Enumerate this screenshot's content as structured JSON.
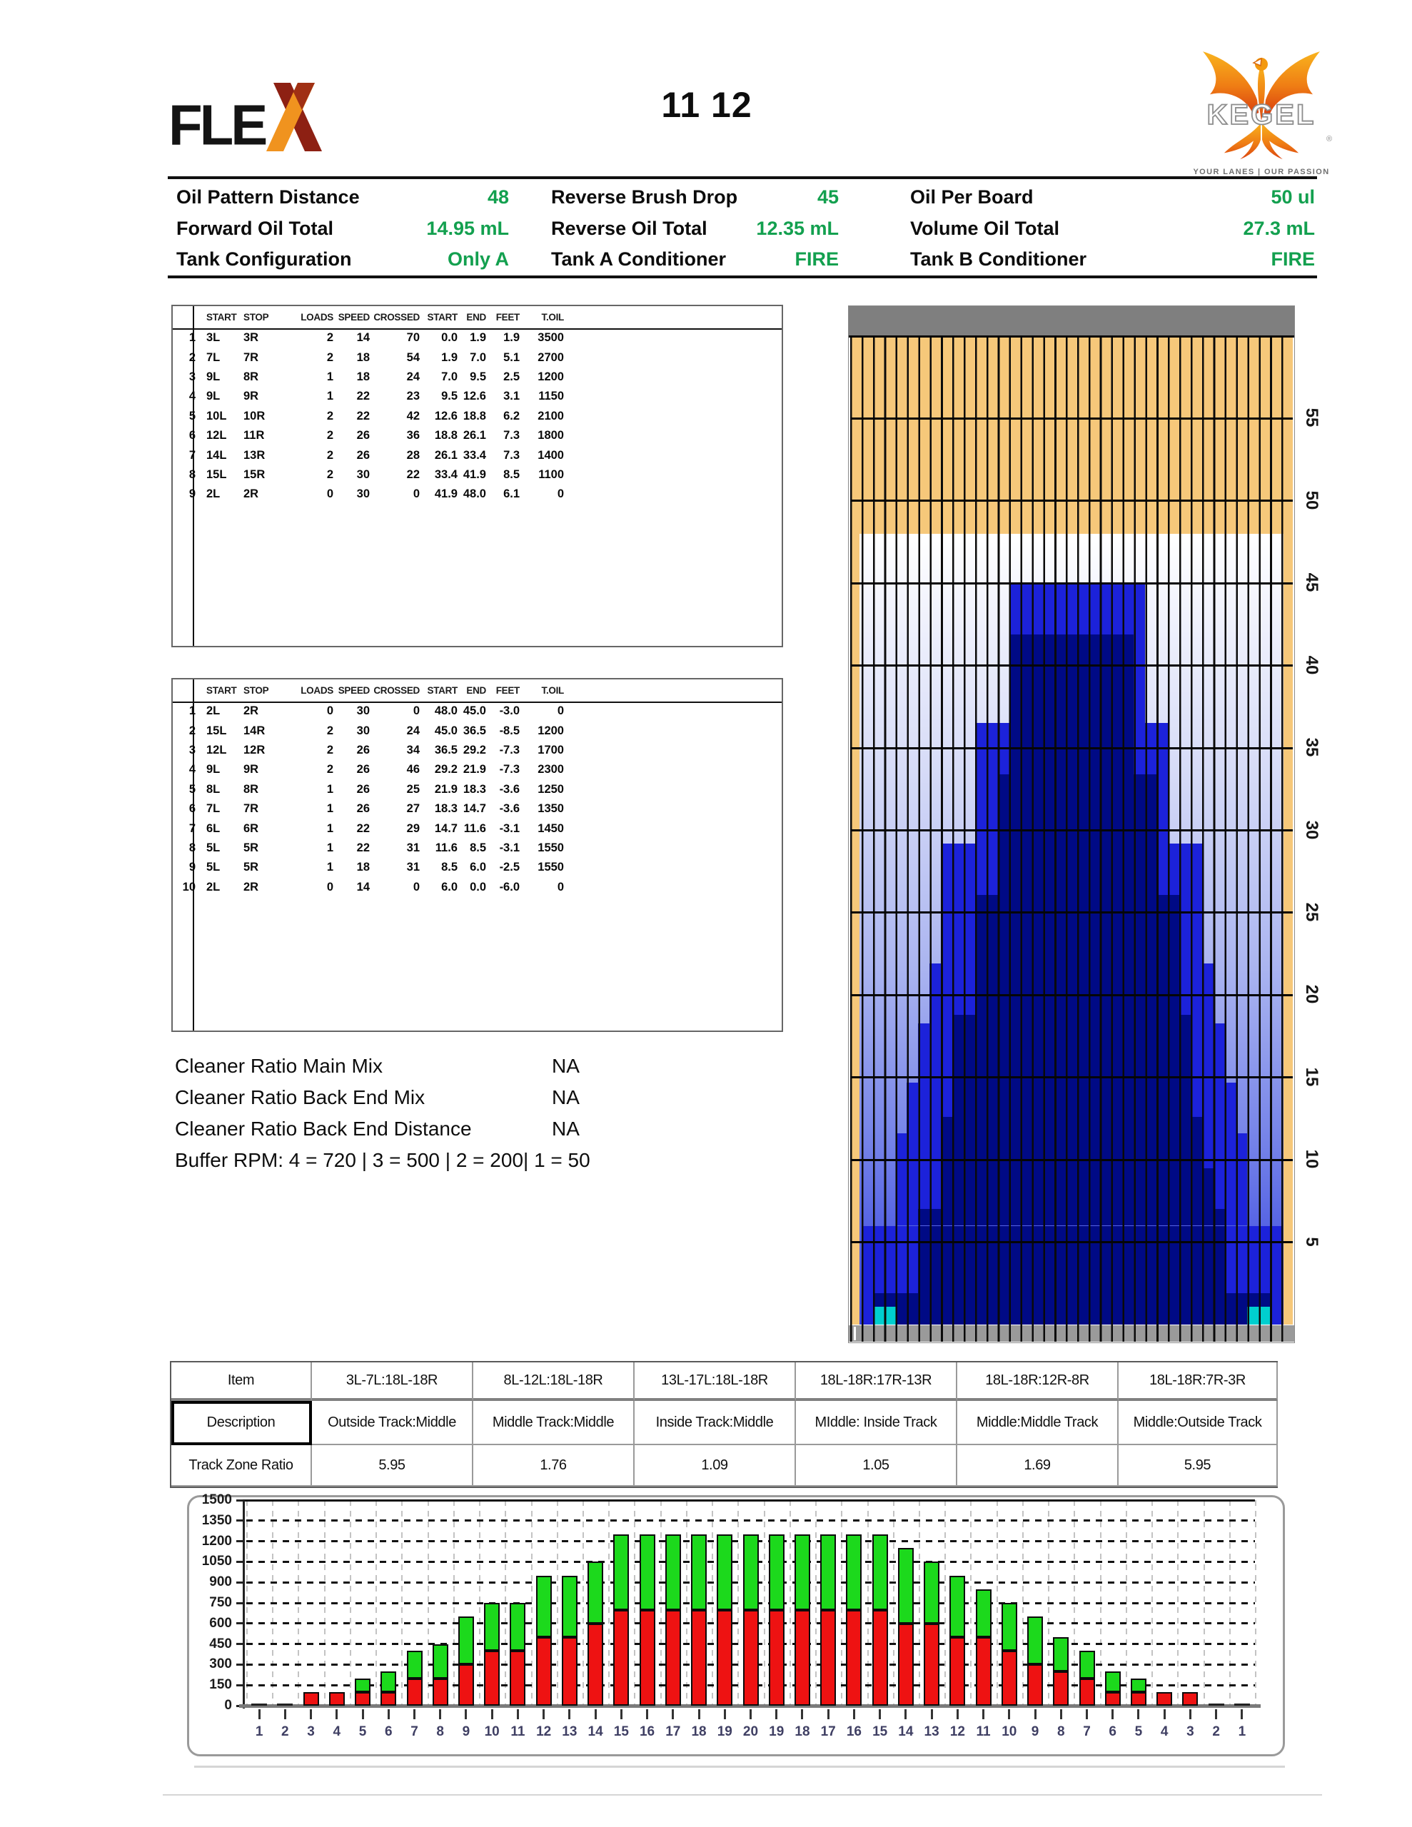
{
  "header": {
    "flex_text": "FLE",
    "flex_x": "X",
    "title": "11 12",
    "kegel_text": "KEGEL",
    "kegel_registered": "®",
    "kegel_tagline": "YOUR LANES | OUR PASSION"
  },
  "info": {
    "value_color": "#13a04f",
    "cells": [
      {
        "label": "Oil Pattern Distance",
        "value": "48"
      },
      {
        "label": "Reverse Brush Drop",
        "value": "45"
      },
      {
        "label": "Oil Per Board",
        "value": "50 ul"
      },
      {
        "label": "Forward Oil Total",
        "value": "14.95 mL"
      },
      {
        "label": "Reverse Oil Total",
        "value": "12.35 mL"
      },
      {
        "label": "Volume Oil Total",
        "value": "27.3 mL"
      },
      {
        "label": "Tank Configuration",
        "value": "Only A"
      },
      {
        "label": "Tank A Conditioner",
        "value": "FIRE"
      },
      {
        "label": "Tank B Conditioner",
        "value": "FIRE"
      }
    ]
  },
  "forward_table": {
    "headers": [
      "START",
      "STOP",
      "LOADS",
      "SPEED",
      "CROSSED",
      "START",
      "END",
      "FEET",
      "T.OIL"
    ],
    "rows": [
      [
        "1",
        "3L",
        "3R",
        "2",
        "14",
        "70",
        "0.0",
        "1.9",
        "1.9",
        "3500"
      ],
      [
        "2",
        "7L",
        "7R",
        "2",
        "18",
        "54",
        "1.9",
        "7.0",
        "5.1",
        "2700"
      ],
      [
        "3",
        "9L",
        "8R",
        "1",
        "18",
        "24",
        "7.0",
        "9.5",
        "2.5",
        "1200"
      ],
      [
        "4",
        "9L",
        "9R",
        "1",
        "22",
        "23",
        "9.5",
        "12.6",
        "3.1",
        "1150"
      ],
      [
        "5",
        "10L",
        "10R",
        "2",
        "22",
        "42",
        "12.6",
        "18.8",
        "6.2",
        "2100"
      ],
      [
        "6",
        "12L",
        "11R",
        "2",
        "26",
        "36",
        "18.8",
        "26.1",
        "7.3",
        "1800"
      ],
      [
        "7",
        "14L",
        "13R",
        "2",
        "26",
        "28",
        "26.1",
        "33.4",
        "7.3",
        "1400"
      ],
      [
        "8",
        "15L",
        "15R",
        "2",
        "30",
        "22",
        "33.4",
        "41.9",
        "8.5",
        "1100"
      ],
      [
        "9",
        "2L",
        "2R",
        "0",
        "30",
        "0",
        "41.9",
        "48.0",
        "6.1",
        "0"
      ]
    ]
  },
  "reverse_table": {
    "headers": [
      "START",
      "STOP",
      "LOADS",
      "SPEED",
      "CROSSED",
      "START",
      "END",
      "FEET",
      "T.OIL"
    ],
    "rows": [
      [
        "1",
        "2L",
        "2R",
        "0",
        "30",
        "0",
        "48.0",
        "45.0",
        "-3.0",
        "0"
      ],
      [
        "2",
        "15L",
        "14R",
        "2",
        "30",
        "24",
        "45.0",
        "36.5",
        "-8.5",
        "1200"
      ],
      [
        "3",
        "12L",
        "12R",
        "2",
        "26",
        "34",
        "36.5",
        "29.2",
        "-7.3",
        "1700"
      ],
      [
        "4",
        "9L",
        "9R",
        "2",
        "26",
        "46",
        "29.2",
        "21.9",
        "-7.3",
        "2300"
      ],
      [
        "5",
        "8L",
        "8R",
        "1",
        "26",
        "25",
        "21.9",
        "18.3",
        "-3.6",
        "1250"
      ],
      [
        "6",
        "7L",
        "7R",
        "1",
        "26",
        "27",
        "18.3",
        "14.7",
        "-3.6",
        "1350"
      ],
      [
        "7",
        "6L",
        "6R",
        "1",
        "22",
        "29",
        "14.7",
        "11.6",
        "-3.1",
        "1450"
      ],
      [
        "8",
        "5L",
        "5R",
        "1",
        "22",
        "31",
        "11.6",
        "8.5",
        "-3.1",
        "1550"
      ],
      [
        "9",
        "5L",
        "5R",
        "1",
        "18",
        "31",
        "8.5",
        "6.0",
        "-2.5",
        "1550"
      ],
      [
        "10",
        "2L",
        "2R",
        "0",
        "14",
        "0",
        "6.0",
        "0.0",
        "-6.0",
        "0"
      ]
    ]
  },
  "cleaner": {
    "lines": [
      {
        "label": "Cleaner Ratio Main Mix",
        "value": "NA"
      },
      {
        "label": "Cleaner Ratio Back End Mix",
        "value": "NA"
      },
      {
        "label": "Cleaner Ratio Back End Distance",
        "value": "NA"
      }
    ],
    "buffer_rpm": "Buffer RPM: 4 = 720 | 3 = 500 | 2 = 200| 1 = 50"
  },
  "lane": {
    "boards": 39,
    "length_ft": 60,
    "pattern_distance_ft": 48,
    "distance_labels": [
      "55",
      "50",
      "45",
      "40",
      "35",
      "30",
      "25",
      "20",
      "15",
      "10",
      "5"
    ],
    "colors": {
      "wood": "#f6c87a",
      "pindeck_gray": "#7f7f7f",
      "foul_gray": "#9a9a9a",
      "oil_medium": "#1c22da",
      "oil_dark": "#000a85",
      "marker_cyan": "#00cfcf",
      "board_line": "#0a0a0a"
    },
    "bands": [
      {
        "from": 0.0,
        "to": 1.9,
        "union": [
          2,
          38
        ],
        "core": [
          3,
          37
        ]
      },
      {
        "from": 1.9,
        "to": 6.0,
        "union": [
          2,
          38
        ],
        "core": [
          7,
          33
        ]
      },
      {
        "from": 6.0,
        "to": 7.0,
        "union": [
          5,
          35
        ],
        "core": [
          7,
          33
        ]
      },
      {
        "from": 7.0,
        "to": 9.5,
        "union": [
          5,
          35
        ],
        "core": [
          9,
          32
        ]
      },
      {
        "from": 9.5,
        "to": 11.6,
        "union": [
          5,
          35
        ],
        "core": [
          9,
          31
        ]
      },
      {
        "from": 11.6,
        "to": 12.6,
        "union": [
          6,
          34
        ],
        "core": [
          9,
          31
        ]
      },
      {
        "from": 12.6,
        "to": 14.7,
        "union": [
          6,
          34
        ],
        "core": [
          10,
          30
        ]
      },
      {
        "from": 14.7,
        "to": 18.3,
        "union": [
          7,
          33
        ],
        "core": [
          10,
          30
        ]
      },
      {
        "from": 18.3,
        "to": 18.8,
        "union": [
          8,
          32
        ],
        "core": [
          10,
          30
        ]
      },
      {
        "from": 18.8,
        "to": 21.9,
        "union": [
          8,
          32
        ],
        "core": [
          12,
          29
        ]
      },
      {
        "from": 21.9,
        "to": 26.1,
        "union": [
          9,
          31
        ],
        "core": [
          12,
          29
        ]
      },
      {
        "from": 26.1,
        "to": 29.2,
        "union": [
          9,
          31
        ],
        "core": [
          14,
          27
        ]
      },
      {
        "from": 29.2,
        "to": 33.4,
        "union": [
          12,
          28
        ],
        "core": [
          14,
          27
        ]
      },
      {
        "from": 33.4,
        "to": 36.5,
        "union": [
          12,
          28
        ],
        "core": [
          15,
          25
        ]
      },
      {
        "from": 36.5,
        "to": 41.9,
        "union": [
          15,
          26
        ],
        "core": [
          15,
          25
        ]
      },
      {
        "from": 41.9,
        "to": 45.0,
        "union": [
          15,
          26
        ],
        "core": null
      }
    ],
    "cyan_markers": [
      {
        "boards": [
          3,
          4
        ],
        "from": 0.0,
        "to": 1.1
      },
      {
        "boards": [
          36,
          37
        ],
        "from": 0.0,
        "to": 1.1
      }
    ]
  },
  "track_table": {
    "rows": [
      [
        "Item",
        "3L-7L:18L-18R",
        "8L-12L:18L-18R",
        "13L-17L:18L-18R",
        "18L-18R:17R-13R",
        "18L-18R:12R-8R",
        "18L-18R:7R-3R"
      ],
      [
        "Description",
        "Outside Track:Middle",
        "Middle Track:Middle",
        "Inside Track:Middle",
        "MIddle: Inside Track",
        "Middle:Middle Track",
        "Middle:Outside Track"
      ],
      [
        "Track Zone Ratio",
        "5.95",
        "1.76",
        "1.09",
        "1.05",
        "1.69",
        "5.95"
      ]
    ]
  },
  "chart_data": {
    "type": "bar",
    "stacked": true,
    "title": "",
    "xlabel": "",
    "ylabel": "",
    "ylim": [
      0,
      1500
    ],
    "yticks": [
      0,
      150,
      300,
      450,
      600,
      750,
      900,
      1050,
      1200,
      1350,
      1500
    ],
    "grid": true,
    "legend": "none",
    "categories": [
      "1",
      "2",
      "3",
      "4",
      "5",
      "6",
      "7",
      "8",
      "9",
      "10",
      "11",
      "12",
      "13",
      "14",
      "15",
      "16",
      "17",
      "18",
      "19",
      "20",
      "19",
      "18",
      "17",
      "16",
      "15",
      "14",
      "13",
      "12",
      "11",
      "10",
      "9",
      "8",
      "7",
      "6",
      "5",
      "4",
      "3",
      "2",
      "1"
    ],
    "series": [
      {
        "name": "forward_oil",
        "color": "#ee1212",
        "values": [
          0,
          0,
          100,
          100,
          100,
          100,
          200,
          200,
          300,
          400,
          400,
          500,
          500,
          600,
          700,
          700,
          700,
          700,
          700,
          700,
          700,
          700,
          700,
          700,
          700,
          600,
          600,
          500,
          500,
          400,
          300,
          250,
          200,
          100,
          100,
          100,
          100,
          0,
          0
        ]
      },
      {
        "name": "reverse_oil",
        "color": "#1cd91c",
        "values": [
          0,
          0,
          0,
          0,
          100,
          150,
          200,
          250,
          350,
          350,
          350,
          450,
          450,
          450,
          550,
          550,
          550,
          550,
          550,
          550,
          550,
          550,
          550,
          550,
          550,
          550,
          450,
          450,
          350,
          350,
          350,
          250,
          200,
          150,
          100,
          0,
          0,
          0,
          0
        ]
      }
    ]
  }
}
